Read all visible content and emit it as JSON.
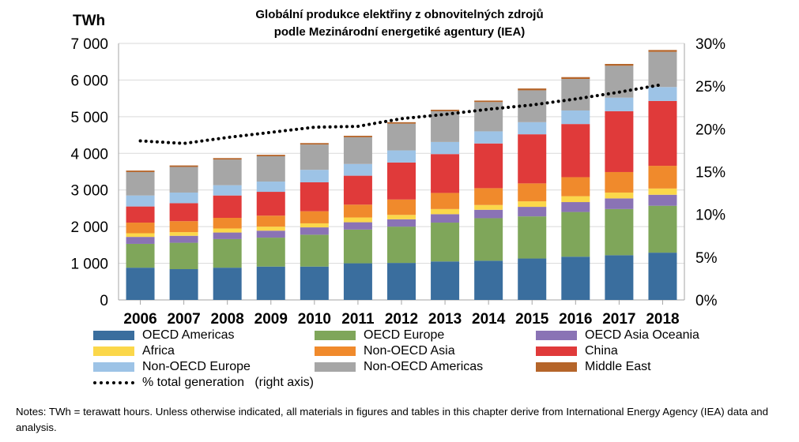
{
  "title_line1": "Globální produkce elektřiny z obnovitelných zdrojů",
  "title_line2": "podle Mezinárodní energetiké agentury (IEA)",
  "y_left_unit": "TWh",
  "notes": "Notes: TWh = terawatt hours. Unless otherwise indicated, all materials in figures and tables in this chapter derive from International Energy Agency (IEA) data and analysis.",
  "chart_data": {
    "type": "bar",
    "stacked": true,
    "categories": [
      "2006",
      "2007",
      "2008",
      "2009",
      "2010",
      "2011",
      "2012",
      "2013",
      "2014",
      "2015",
      "2016",
      "2017",
      "2018"
    ],
    "y_left": {
      "min": 0,
      "max": 7000,
      "ticks": [
        0,
        1000,
        2000,
        3000,
        4000,
        5000,
        6000,
        7000
      ],
      "tick_labels": [
        "0",
        "1 000",
        "2 000",
        "3 000",
        "4 000",
        "5 000",
        "6 000",
        "7 000"
      ]
    },
    "y_right": {
      "min": 0,
      "max": 30,
      "ticks": [
        0,
        5,
        10,
        15,
        20,
        25,
        30
      ],
      "tick_labels": [
        "0%",
        "5%",
        "10%",
        "15%",
        "20%",
        "25%",
        "30%"
      ]
    },
    "series": [
      {
        "name": "OECD Americas",
        "color": "#3a6e9e",
        "values": [
          880,
          840,
          880,
          910,
          910,
          1000,
          1010,
          1050,
          1070,
          1130,
          1180,
          1220,
          1290
        ]
      },
      {
        "name": "OECD Europe",
        "color": "#7fa65a",
        "values": [
          650,
          720,
          780,
          790,
          870,
          920,
          990,
          1060,
          1160,
          1150,
          1220,
          1260,
          1280
        ]
      },
      {
        "name": "OECD Asia Oceania",
        "color": "#8a73b5",
        "values": [
          190,
          190,
          180,
          190,
          200,
          200,
          200,
          230,
          230,
          260,
          270,
          290,
          300
        ]
      },
      {
        "name": "Africa",
        "color": "#fbd74a",
        "values": [
          100,
          100,
          110,
          110,
          110,
          130,
          120,
          140,
          130,
          150,
          160,
          160,
          170
        ]
      },
      {
        "name": "Non-OECD Asia",
        "color": "#f08a2c",
        "values": [
          290,
          300,
          290,
          300,
          330,
          350,
          420,
          440,
          460,
          490,
          520,
          560,
          620
        ]
      },
      {
        "name": "China",
        "color": "#e03a3a",
        "values": [
          440,
          490,
          610,
          650,
          790,
          790,
          1010,
          1060,
          1220,
          1340,
          1450,
          1660,
          1770
        ]
      },
      {
        "name": "Non-OECD Europe",
        "color": "#9dc3e6",
        "values": [
          300,
          290,
          280,
          280,
          340,
          320,
          330,
          330,
          330,
          330,
          370,
          370,
          380
        ]
      },
      {
        "name": "Non-OECD Americas",
        "color": "#a6a6a6",
        "values": [
          640,
          700,
          700,
          690,
          690,
          730,
          730,
          840,
          800,
          870,
          860,
          870,
          960
        ]
      },
      {
        "name": "Middle East",
        "color": "#b5652a",
        "values": [
          40,
          40,
          40,
          40,
          40,
          40,
          40,
          40,
          40,
          50,
          50,
          50,
          50
        ]
      }
    ],
    "line_series": {
      "name": "% total generation   (right axis)",
      "axis": "right",
      "color": "#000000",
      "style": "dotted",
      "values": [
        18.6,
        18.3,
        19.0,
        19.6,
        20.2,
        20.3,
        21.2,
        21.7,
        22.3,
        22.8,
        23.5,
        24.3,
        25.2
      ]
    },
    "legend_position": "bottom",
    "grid": "horizontal"
  }
}
